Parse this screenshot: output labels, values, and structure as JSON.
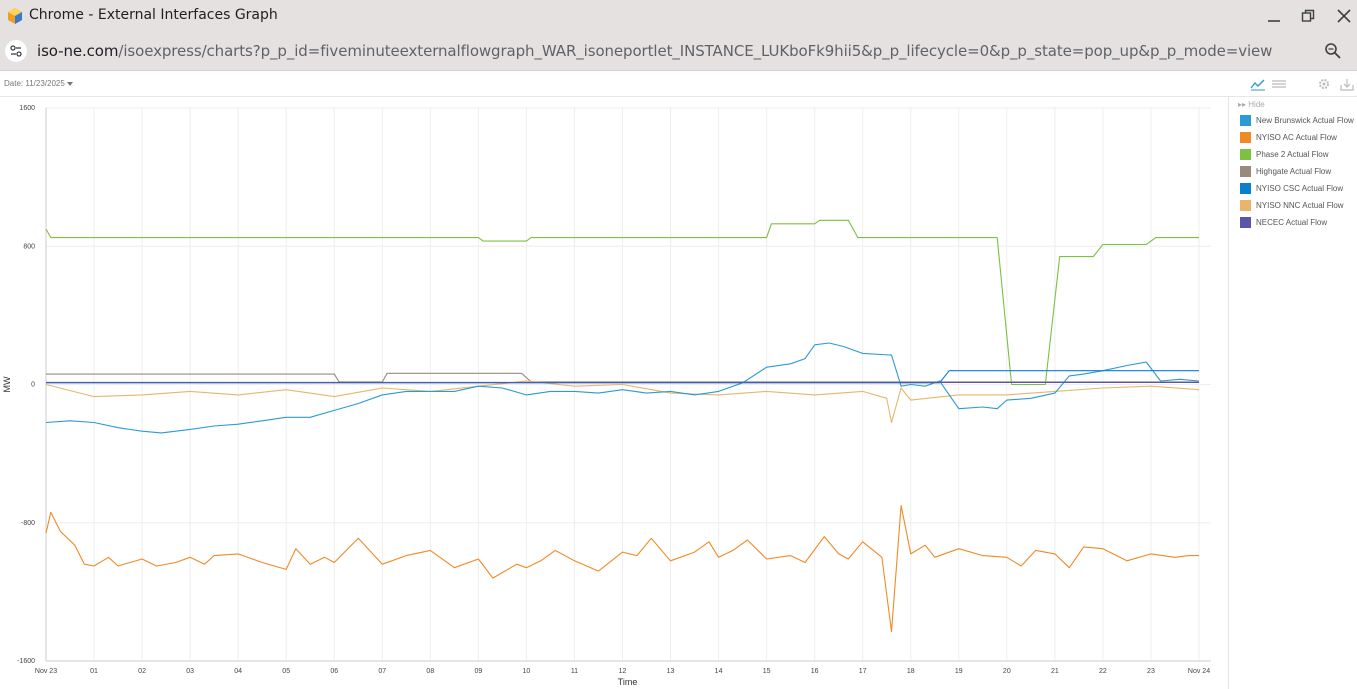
{
  "window": {
    "title": "Chrome - External Interfaces Graph"
  },
  "address": {
    "host": "iso-ne.com",
    "path": "/isoexpress/charts?p_p_id=fiveminuteexternalflowgraph_WAR_isoneportlet_INSTANCE_LUKboFk9hii5&p_p_lifecycle=0&p_p_state=pop_up&p_p_mode=view"
  },
  "toolbar": {
    "date_label": "Date: 11/23/2025"
  },
  "legend": {
    "hide_label": "Hide",
    "items": [
      {
        "label": "New Brunswick Actual Flow",
        "color": "#2b9ad5"
      },
      {
        "label": "NYISO AC Actual Flow",
        "color": "#f08a24"
      },
      {
        "label": "Phase 2 Actual Flow",
        "color": "#7cc142"
      },
      {
        "label": "Highgate Actual Flow",
        "color": "#988b7d"
      },
      {
        "label": "NYISO CSC Actual Flow",
        "color": "#0a7fd0"
      },
      {
        "label": "NYISO NNC Actual Flow",
        "color": "#e8b56b"
      },
      {
        "label": "NECEC Actual Flow",
        "color": "#5a55a6"
      }
    ]
  },
  "chart_data": {
    "type": "line",
    "xlabel": "Time",
    "ylabel": "MW",
    "ylim": [
      -1600,
      1600
    ],
    "yticks": [
      "1600",
      "800",
      "0",
      "-800",
      "-1600"
    ],
    "xticks": [
      "Nov 23",
      "01",
      "02",
      "03",
      "04",
      "05",
      "06",
      "07",
      "08",
      "09",
      "10",
      "11",
      "12",
      "13",
      "14",
      "15",
      "16",
      "17",
      "18",
      "19",
      "20",
      "21",
      "22",
      "23",
      "Nov 24"
    ],
    "xlim_hours": [
      0,
      24
    ],
    "grid": true,
    "legend_position": "right",
    "series": [
      {
        "name": "Phase 2 Actual Flow",
        "color": "#7cc142",
        "points": [
          [
            0,
            900
          ],
          [
            0.1,
            850
          ],
          [
            9,
            850
          ],
          [
            9.1,
            830
          ],
          [
            10,
            830
          ],
          [
            10.1,
            850
          ],
          [
            15,
            850
          ],
          [
            15.1,
            930
          ],
          [
            16,
            930
          ],
          [
            16.1,
            950
          ],
          [
            16.7,
            950
          ],
          [
            16.9,
            850
          ],
          [
            19.8,
            850
          ],
          [
            20.1,
            0
          ],
          [
            20.8,
            0
          ],
          [
            21.1,
            740
          ],
          [
            21.8,
            740
          ],
          [
            22,
            810
          ],
          [
            22.9,
            810
          ],
          [
            23.1,
            850
          ],
          [
            24,
            850
          ]
        ]
      },
      {
        "name": "Highgate Actual Flow",
        "color": "#988b7d",
        "points": [
          [
            0,
            60
          ],
          [
            6,
            60
          ],
          [
            6.1,
            15
          ],
          [
            7,
            15
          ],
          [
            7.1,
            65
          ],
          [
            9.9,
            65
          ],
          [
            10.1,
            15
          ],
          [
            24,
            15
          ]
        ]
      },
      {
        "name": "NYISO NNC Actual Flow",
        "color": "#e8b56b",
        "points": [
          [
            0,
            0
          ],
          [
            1,
            -70
          ],
          [
            2,
            -60
          ],
          [
            3,
            -40
          ],
          [
            4,
            -60
          ],
          [
            5,
            -30
          ],
          [
            6,
            -70
          ],
          [
            7,
            -20
          ],
          [
            8,
            -40
          ],
          [
            9,
            -10
          ],
          [
            10,
            20
          ],
          [
            11,
            -10
          ],
          [
            12,
            0
          ],
          [
            13,
            -50
          ],
          [
            14,
            -60
          ],
          [
            15,
            -40
          ],
          [
            16,
            -60
          ],
          [
            17,
            -40
          ],
          [
            17.5,
            -80
          ],
          [
            17.6,
            -220
          ],
          [
            17.8,
            -20
          ],
          [
            18,
            -90
          ],
          [
            19,
            -60
          ],
          [
            20,
            -60
          ],
          [
            21,
            -40
          ],
          [
            22,
            -20
          ],
          [
            23,
            -10
          ],
          [
            24,
            -30
          ]
        ]
      },
      {
        "name": "New Brunswick Actual Flow",
        "color": "#2b9ad5",
        "points": [
          [
            0,
            -220
          ],
          [
            0.5,
            -210
          ],
          [
            1,
            -220
          ],
          [
            1.5,
            -250
          ],
          [
            2,
            -270
          ],
          [
            2.4,
            -280
          ],
          [
            3,
            -260
          ],
          [
            3.5,
            -240
          ],
          [
            4,
            -230
          ],
          [
            4.5,
            -210
          ],
          [
            5,
            -190
          ],
          [
            5.5,
            -190
          ],
          [
            6,
            -150
          ],
          [
            6.5,
            -110
          ],
          [
            7,
            -60
          ],
          [
            7.5,
            -40
          ],
          [
            8,
            -40
          ],
          [
            8.5,
            -40
          ],
          [
            9,
            -10
          ],
          [
            9.5,
            -20
          ],
          [
            10,
            -60
          ],
          [
            10.5,
            -40
          ],
          [
            11,
            -40
          ],
          [
            11.5,
            -50
          ],
          [
            12,
            -30
          ],
          [
            12.5,
            -50
          ],
          [
            13,
            -40
          ],
          [
            13.5,
            -60
          ],
          [
            14,
            -40
          ],
          [
            14.5,
            10
          ],
          [
            15,
            100
          ],
          [
            15.5,
            120
          ],
          [
            15.8,
            150
          ],
          [
            16,
            230
          ],
          [
            16.3,
            240
          ],
          [
            16.6,
            220
          ],
          [
            17,
            180
          ],
          [
            17.6,
            170
          ],
          [
            17.8,
            -10
          ],
          [
            18,
            0
          ],
          [
            18.3,
            -10
          ],
          [
            18.6,
            20
          ],
          [
            19,
            -140
          ],
          [
            19.5,
            -130
          ],
          [
            19.8,
            -140
          ],
          [
            20,
            -90
          ],
          [
            20.5,
            -80
          ],
          [
            21,
            -50
          ],
          [
            21.3,
            50
          ],
          [
            21.6,
            60
          ],
          [
            22,
            80
          ],
          [
            22.5,
            110
          ],
          [
            22.9,
            130
          ],
          [
            23.2,
            20
          ],
          [
            23.6,
            30
          ],
          [
            24,
            20
          ]
        ]
      },
      {
        "name": "NYISO CSC Actual Flow",
        "color": "#0a7fd0",
        "points": [
          [
            0,
            10
          ],
          [
            18.6,
            10
          ],
          [
            18.8,
            80
          ],
          [
            20,
            80
          ],
          [
            23,
            80
          ],
          [
            24,
            80
          ]
        ]
      },
      {
        "name": "NECEC Actual Flow",
        "color": "#5a55a6",
        "points": [
          [
            0,
            12
          ],
          [
            24,
            12
          ]
        ]
      },
      {
        "name": "NYISO AC Actual Flow",
        "color": "#f08a24",
        "points": [
          [
            0,
            -860
          ],
          [
            0.1,
            -740
          ],
          [
            0.3,
            -850
          ],
          [
            0.6,
            -930
          ],
          [
            0.8,
            -1040
          ],
          [
            1,
            -1050
          ],
          [
            1.3,
            -1000
          ],
          [
            1.5,
            -1050
          ],
          [
            2,
            -1010
          ],
          [
            2.3,
            -1050
          ],
          [
            2.7,
            -1030
          ],
          [
            3,
            -1000
          ],
          [
            3.3,
            -1040
          ],
          [
            3.5,
            -990
          ],
          [
            4,
            -980
          ],
          [
            4.5,
            -1030
          ],
          [
            5,
            -1070
          ],
          [
            5.2,
            -950
          ],
          [
            5.5,
            -1040
          ],
          [
            5.8,
            -1000
          ],
          [
            6,
            -1030
          ],
          [
            6.5,
            -890
          ],
          [
            7,
            -1040
          ],
          [
            7.5,
            -990
          ],
          [
            8,
            -960
          ],
          [
            8.5,
            -1060
          ],
          [
            9,
            -1010
          ],
          [
            9.3,
            -1120
          ],
          [
            9.8,
            -1040
          ],
          [
            10,
            -1060
          ],
          [
            10.3,
            -1020
          ],
          [
            10.6,
            -960
          ],
          [
            11,
            -1020
          ],
          [
            11.5,
            -1080
          ],
          [
            12,
            -970
          ],
          [
            12.3,
            -990
          ],
          [
            12.6,
            -890
          ],
          [
            13,
            -1020
          ],
          [
            13.5,
            -970
          ],
          [
            13.8,
            -910
          ],
          [
            14,
            -1000
          ],
          [
            14.3,
            -960
          ],
          [
            14.6,
            -900
          ],
          [
            15,
            -1010
          ],
          [
            15.5,
            -990
          ],
          [
            15.8,
            -1030
          ],
          [
            16.2,
            -880
          ],
          [
            16.5,
            -980
          ],
          [
            16.7,
            -1010
          ],
          [
            17,
            -910
          ],
          [
            17.4,
            -1000
          ],
          [
            17.6,
            -1430
          ],
          [
            17.8,
            -700
          ],
          [
            18,
            -980
          ],
          [
            18.3,
            -930
          ],
          [
            18.5,
            -1000
          ],
          [
            19,
            -950
          ],
          [
            19.5,
            -990
          ],
          [
            20,
            -1000
          ],
          [
            20.3,
            -1050
          ],
          [
            20.6,
            -960
          ],
          [
            21,
            -980
          ],
          [
            21.3,
            -1060
          ],
          [
            21.6,
            -940
          ],
          [
            22,
            -950
          ],
          [
            22.5,
            -1020
          ],
          [
            23,
            -980
          ],
          [
            23.5,
            -1000
          ],
          [
            23.8,
            -990
          ],
          [
            24,
            -990
          ]
        ]
      }
    ]
  }
}
